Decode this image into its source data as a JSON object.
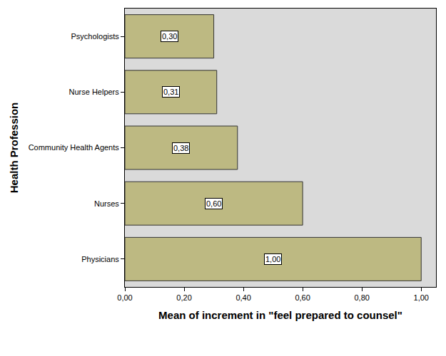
{
  "chart_data": {
    "type": "bar",
    "orientation": "horizontal",
    "x_label": "Mean of increment in \"feel prepared to counsel\"",
    "y_label": "Health Profession",
    "categories": [
      "Psychologists",
      "Nurse Helpers",
      "Community Health Agents",
      "Nurses",
      "Physicians"
    ],
    "values": [
      0.3,
      0.31,
      0.38,
      0.6,
      1.0
    ],
    "value_labels": [
      "0,30",
      "0,31",
      "0,38",
      "0,60",
      "1,00"
    ],
    "data_labels": true,
    "color": "#bdb982",
    "xlim": [
      0,
      1.05
    ],
    "xticks": [
      {
        "value": 0,
        "label": "0,00"
      },
      {
        "value": 0.2,
        "label": "0,20"
      },
      {
        "value": 0.4,
        "label": "0,40"
      },
      {
        "value": 0.6,
        "label": "0,60"
      },
      {
        "value": 0.8,
        "label": "0,80"
      },
      {
        "value": 1.0,
        "label": "1,00"
      }
    ],
    "grid": false
  }
}
